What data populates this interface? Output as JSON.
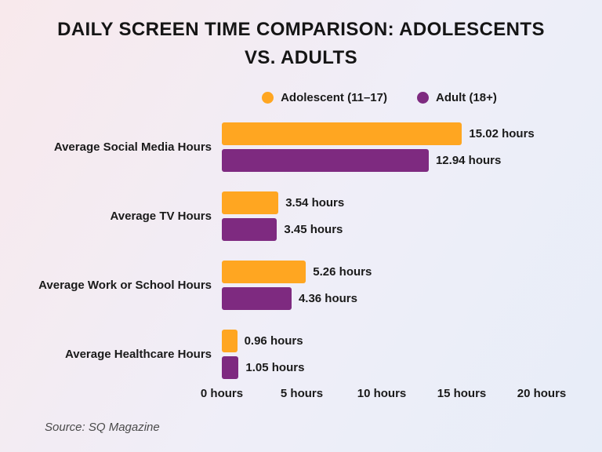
{
  "title": "DAILY SCREEN TIME COMPARISON: ADOLESCENTS VS. ADULTS",
  "source": "Source: SQ Magazine",
  "colors": {
    "adolescent": "#FFA621",
    "adult": "#7E2A80",
    "text": "#1a1a1a"
  },
  "legend": [
    {
      "label": "Adolescent (11–17)",
      "color": "#FFA621"
    },
    {
      "label": "Adult (18+)",
      "color": "#7E2A80"
    }
  ],
  "chart_data": {
    "type": "bar",
    "orientation": "horizontal",
    "title": "DAILY SCREEN TIME COMPARISON: ADOLESCENTS VS. ADULTS",
    "categories": [
      "Average Social Media Hours",
      "Average TV Hours",
      "Average Work or School Hours",
      "Average Healthcare Hours"
    ],
    "series": [
      {
        "name": "Adolescent (11–17)",
        "color": "#FFA621",
        "values": [
          15.02,
          3.54,
          5.26,
          0.96
        ],
        "labels": [
          "15.02 hours",
          "3.54 hours",
          "5.26 hours",
          "0.96 hours"
        ]
      },
      {
        "name": "Adult (18+)",
        "color": "#7E2A80",
        "values": [
          12.94,
          3.45,
          4.36,
          1.05
        ],
        "labels": [
          "12.94 hours",
          "3.45 hours",
          "4.36 hours",
          "1.05 hours"
        ]
      }
    ],
    "xlim": [
      0,
      20
    ],
    "x_ticks": [
      "0 hours",
      "5 hours",
      "10 hours",
      "15 hours",
      "20 hours"
    ],
    "grid": false,
    "legend_position": "top"
  }
}
